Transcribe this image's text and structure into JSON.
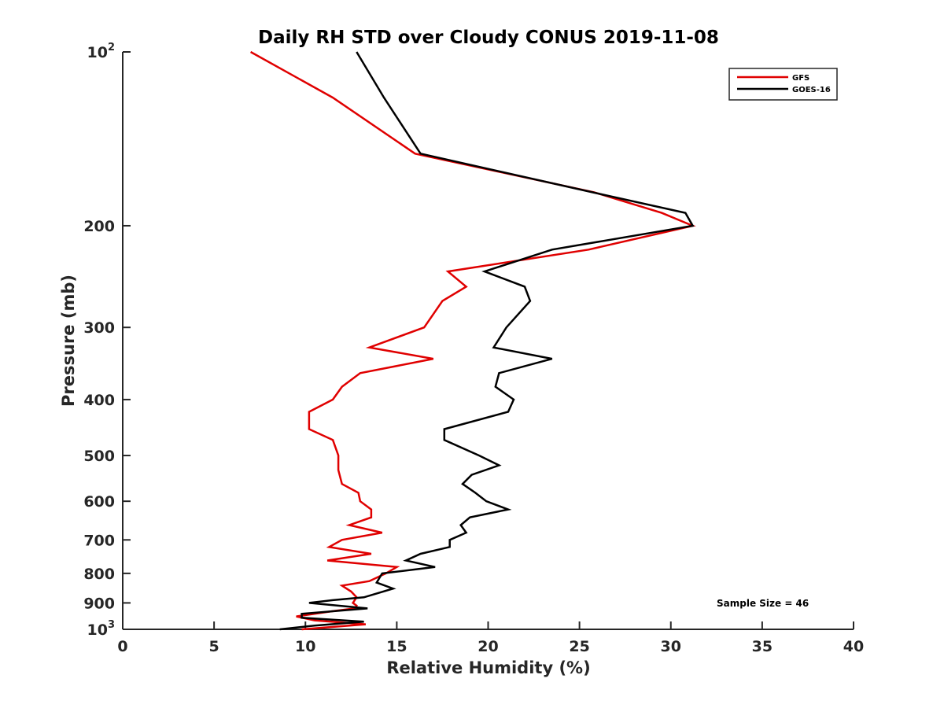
{
  "chart_data": {
    "type": "line",
    "title": "Daily RH STD over Cloudy CONUS 2019-11-08",
    "xlabel": "Relative Humidity (%)",
    "ylabel": "Pressure (mb)",
    "xlim": [
      0,
      40
    ],
    "ylim": [
      100,
      1000
    ],
    "yscale": "log",
    "y_reversed": true,
    "x_ticks": [
      "0",
      "5",
      "10",
      "15",
      "20",
      "25",
      "30",
      "35",
      "40"
    ],
    "y_ticks": [
      {
        "value": 100,
        "label": "10",
        "sup": "2"
      },
      {
        "value": 200,
        "label": "200",
        "sup": ""
      },
      {
        "value": 300,
        "label": "300",
        "sup": ""
      },
      {
        "value": 400,
        "label": "400",
        "sup": ""
      },
      {
        "value": 500,
        "label": "500",
        "sup": ""
      },
      {
        "value": 600,
        "label": "600",
        "sup": ""
      },
      {
        "value": 700,
        "label": "700",
        "sup": ""
      },
      {
        "value": 800,
        "label": "800",
        "sup": ""
      },
      {
        "value": 900,
        "label": "900",
        "sup": ""
      },
      {
        "value": 1000,
        "label": "10",
        "sup": "3"
      }
    ],
    "legend_position": "top-right",
    "annotation": "Sample Size = 46",
    "series": [
      {
        "name": "GFS",
        "color": "#e00000",
        "x": [
          7.0,
          11.5,
          16.0,
          25.8,
          29.5,
          31.2,
          25.5,
          17.8,
          18.8,
          17.5,
          16.5,
          13.5,
          17.0,
          13.0,
          12.0,
          11.5,
          10.2,
          10.2,
          11.5,
          11.8,
          11.8,
          12.0,
          12.9,
          13.0,
          13.6,
          13.6,
          12.4,
          14.2,
          12.0,
          11.3,
          13.6,
          11.2,
          15.0,
          14.4,
          13.5,
          12.0,
          12.5,
          12.8,
          12.6,
          12.8,
          12.7,
          11.5,
          9.5,
          10.5,
          13.3,
          9.8
        ],
        "y": [
          100,
          120,
          150,
          175,
          190,
          200,
          220,
          240,
          255,
          270,
          300,
          325,
          340,
          360,
          380,
          400,
          420,
          450,
          470,
          500,
          530,
          560,
          580,
          600,
          620,
          640,
          660,
          680,
          700,
          720,
          740,
          760,
          780,
          800,
          825,
          840,
          860,
          880,
          900,
          910,
          920,
          930,
          950,
          965,
          980,
          1000
        ]
      },
      {
        "name": "GOES-16",
        "color": "#000000",
        "x": [
          12.8,
          14.3,
          16.3,
          25.7,
          30.8,
          31.2,
          23.5,
          19.8,
          22.0,
          22.3,
          21.0,
          20.3,
          23.5,
          20.6,
          20.4,
          21.4,
          21.1,
          17.6,
          17.6,
          19.5,
          20.6,
          19.1,
          18.6,
          19.3,
          19.9,
          21.1,
          19.0,
          18.5,
          18.8,
          17.9,
          17.9,
          16.3,
          15.5,
          17.1,
          14.2,
          13.9,
          14.8,
          13.2,
          11.5,
          10.2,
          13.4,
          9.8,
          9.8,
          13.2,
          10.5,
          8.6
        ],
        "y": [
          100,
          120,
          150,
          175,
          190,
          200,
          220,
          240,
          255,
          270,
          300,
          325,
          340,
          360,
          380,
          400,
          420,
          450,
          470,
          500,
          520,
          540,
          560,
          580,
          600,
          620,
          640,
          660,
          680,
          700,
          720,
          740,
          760,
          780,
          800,
          830,
          850,
          880,
          890,
          900,
          920,
          940,
          955,
          970,
          985,
          1000
        ]
      }
    ]
  }
}
